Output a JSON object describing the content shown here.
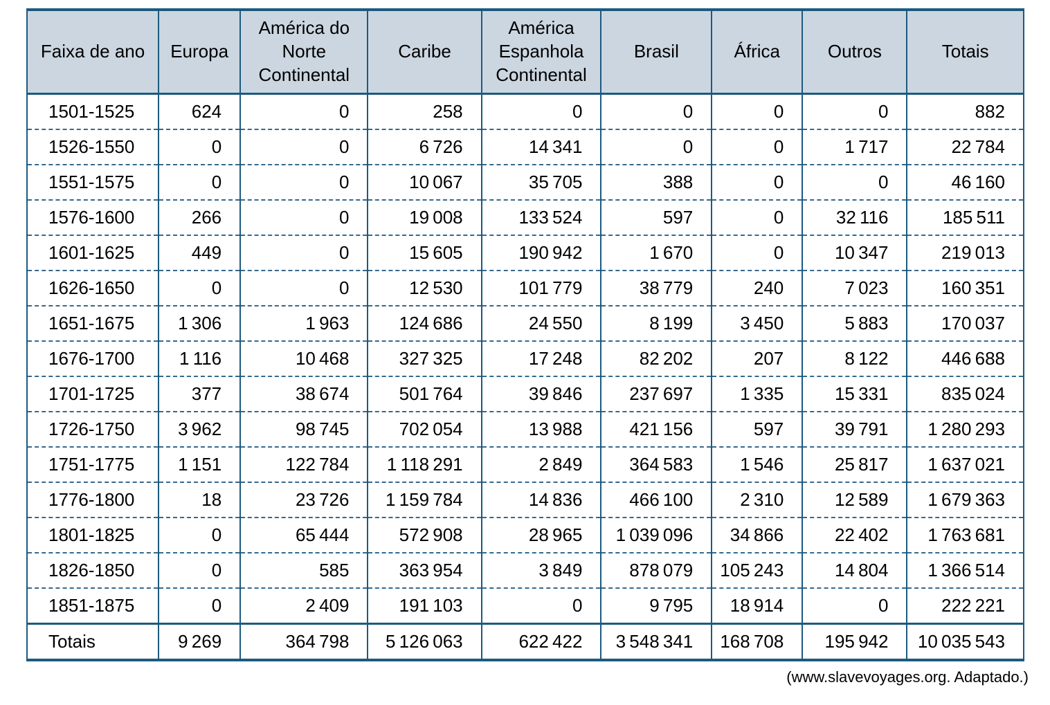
{
  "chart_data": {
    "type": "table",
    "row_header_label": "Faixa de ano",
    "columns": [
      "Faixa de ano",
      "Europa",
      "América do Norte Continental",
      "Caribe",
      "América Espanhola Continental",
      "Brasil",
      "África",
      "Outros",
      "Totais"
    ],
    "rows": [
      [
        "1501-1525",
        624,
        0,
        258,
        0,
        0,
        0,
        0,
        882
      ],
      [
        "1526-1550",
        0,
        0,
        6726,
        14341,
        0,
        0,
        1717,
        22784
      ],
      [
        "1551-1575",
        0,
        0,
        10067,
        35705,
        388,
        0,
        0,
        46160
      ],
      [
        "1576-1600",
        266,
        0,
        19008,
        133524,
        597,
        0,
        32116,
        185511
      ],
      [
        "1601-1625",
        449,
        0,
        15605,
        190942,
        1670,
        0,
        10347,
        219013
      ],
      [
        "1626-1650",
        0,
        0,
        12530,
        101779,
        38779,
        240,
        7023,
        160351
      ],
      [
        "1651-1675",
        1306,
        1963,
        124686,
        24550,
        8199,
        3450,
        5883,
        170037
      ],
      [
        "1676-1700",
        1116,
        10468,
        327325,
        17248,
        82202,
        207,
        8122,
        446688
      ],
      [
        "1701-1725",
        377,
        38674,
        501764,
        39846,
        237697,
        1335,
        15331,
        835024
      ],
      [
        "1726-1750",
        3962,
        98745,
        702054,
        13988,
        421156,
        597,
        39791,
        1280293
      ],
      [
        "1751-1775",
        1151,
        122784,
        1118291,
        2849,
        364583,
        1546,
        25817,
        1637021
      ],
      [
        "1776-1800",
        18,
        23726,
        1159784,
        14836,
        466100,
        2310,
        12589,
        1679363
      ],
      [
        "1801-1825",
        0,
        65444,
        572908,
        28965,
        1039096,
        34866,
        22402,
        1763681
      ],
      [
        "1826-1850",
        0,
        585,
        363954,
        3849,
        878079,
        105243,
        14804,
        1366514
      ],
      [
        "1851-1875",
        0,
        2409,
        191103,
        0,
        9795,
        18914,
        0,
        222221
      ]
    ],
    "totals_row": [
      "Totais",
      9269,
      364798,
      5126063,
      622422,
      3548341,
      168708,
      195942,
      10035543
    ],
    "number_grouping": "thin space thousands separator",
    "layout": {
      "grid": "solid column rules, dashed row rules, thick rules around header and totals"
    }
  },
  "colors": {
    "header_background": "#ccd6e0",
    "solid_border": "#1b5a7e",
    "dashed_border": "#35688e",
    "text": "#000000"
  },
  "footer": {
    "source_citation": "(www.slavevoyages.org. Adaptado.)"
  }
}
